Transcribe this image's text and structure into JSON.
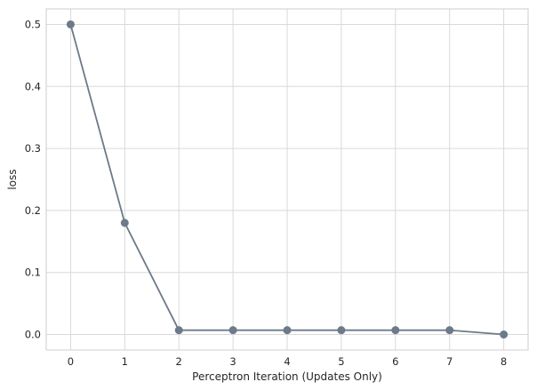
{
  "chart_data": {
    "type": "line",
    "title": "",
    "xlabel": "Perceptron Iteration (Updates Only)",
    "ylabel": "loss",
    "x": [
      0,
      1,
      2,
      3,
      4,
      5,
      6,
      7,
      8
    ],
    "series": [
      {
        "values": [
          0.5,
          0.18,
          0.007,
          0.007,
          0.007,
          0.007,
          0.007,
          0.007,
          0.0
        ]
      }
    ],
    "xlim": [
      -0.45,
      8.45
    ],
    "ylim": [
      -0.025,
      0.525
    ],
    "xticks": [
      "0",
      "1",
      "2",
      "3",
      "4",
      "5",
      "6",
      "7",
      "8"
    ],
    "yticks": [
      "0.0",
      "0.1",
      "0.2",
      "0.3",
      "0.4",
      "0.5"
    ],
    "ytick_values": [
      0.0,
      0.1,
      0.2,
      0.3,
      0.4,
      0.5
    ],
    "grid": true,
    "legend": false,
    "colors": {
      "line": "#6c7a89",
      "grid": "#d9d9d9",
      "frame": "#cccccc"
    }
  }
}
